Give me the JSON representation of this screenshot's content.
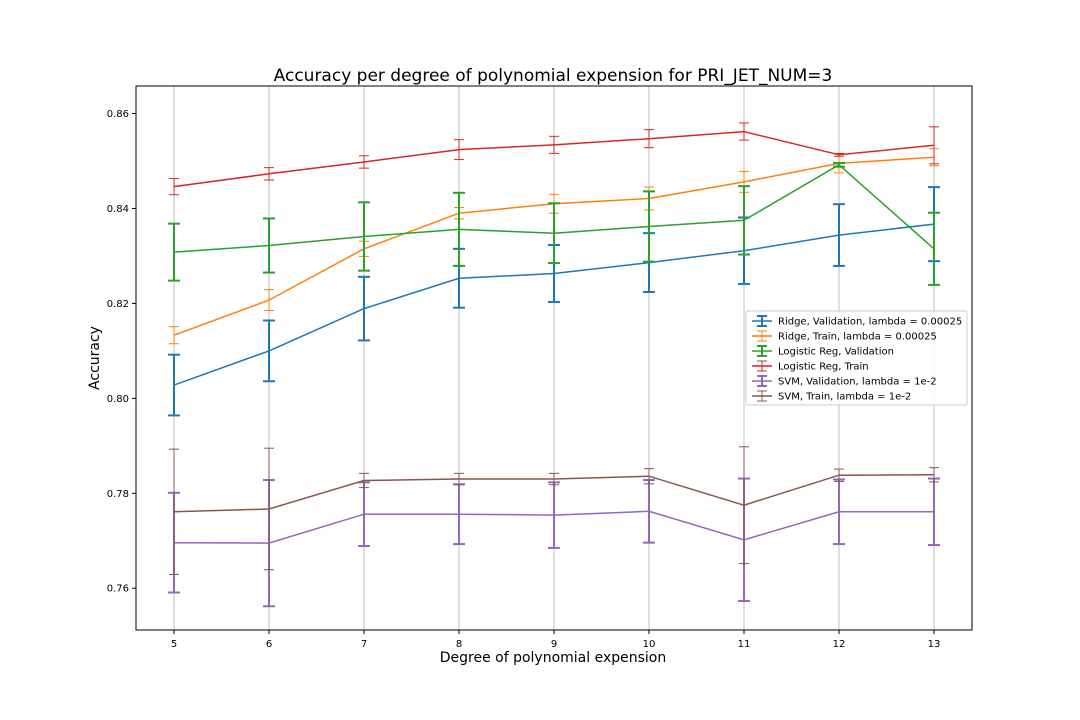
{
  "chart_data": {
    "type": "line",
    "title": "Accuracy per degree of polynomial expension for PRI_JET_NUM=3",
    "xlabel": "Degree of polynomial expension",
    "ylabel": "Accuracy",
    "x": [
      5,
      6,
      7,
      8,
      9,
      10,
      11,
      12,
      13
    ],
    "xlim": [
      4.6,
      13.4
    ],
    "ylim": [
      0.7512,
      0.8658
    ],
    "yticks": [
      0.76,
      0.78,
      0.8,
      0.82,
      0.84,
      0.86
    ],
    "yticks_labels": [
      "0.76",
      "0.78",
      "0.80",
      "0.82",
      "0.84",
      "0.86"
    ],
    "grid": "vertical",
    "legend_position": "center-right",
    "series": [
      {
        "name": "Ridge, Validation, lambda = 0.00025",
        "color": "#1f77b4",
        "errbar": "thick",
        "values": [
          0.8028,
          0.81,
          0.8189,
          0.8253,
          0.8263,
          0.8286,
          0.8311,
          0.8344,
          0.8367
        ],
        "errors": [
          0.0064,
          0.0064,
          0.0067,
          0.0062,
          0.006,
          0.0062,
          0.007,
          0.0065,
          0.0078
        ]
      },
      {
        "name": "Ridge, Train, lambda = 0.00025",
        "color": "#ff7f0e",
        "errbar": "thin",
        "values": [
          0.8133,
          0.8207,
          0.8315,
          0.839,
          0.841,
          0.8421,
          0.8456,
          0.8495,
          0.8508
        ],
        "errors": [
          0.0018,
          0.0022,
          0.0016,
          0.0012,
          0.002,
          0.0024,
          0.0022,
          0.002,
          0.0018
        ]
      },
      {
        "name": "Logistic Reg, Validation",
        "color": "#2ca02c",
        "errbar": "thick",
        "values": [
          0.8308,
          0.8322,
          0.8341,
          0.8356,
          0.8348,
          0.8362,
          0.8375,
          0.8492,
          0.8315
        ],
        "errors": [
          0.006,
          0.0057,
          0.0072,
          0.0077,
          0.0063,
          0.0074,
          0.0072,
          0.0004,
          0.0076
        ]
      },
      {
        "name": "Logistic Reg, Train",
        "color": "#d62728",
        "errbar": "thin",
        "values": [
          0.8446,
          0.8473,
          0.8498,
          0.8524,
          0.8534,
          0.8547,
          0.8562,
          0.8513,
          0.8533
        ],
        "errors": [
          0.0017,
          0.0013,
          0.0013,
          0.0021,
          0.0018,
          0.0019,
          0.0018,
          0.0003,
          0.0039
        ]
      },
      {
        "name": "SVM, Validation, lambda = 1e-2",
        "color": "#9467bd",
        "errbar": "thick",
        "values": [
          0.7696,
          0.7695,
          0.7756,
          0.7756,
          0.7754,
          0.7762,
          0.7702,
          0.7761,
          0.7761
        ],
        "errors": [
          0.0105,
          0.0133,
          0.0067,
          0.0063,
          0.0069,
          0.0066,
          0.0129,
          0.0068,
          0.007
        ]
      },
      {
        "name": "SVM, Train, lambda = 1e-2",
        "color": "#8c564b",
        "errbar": "thin",
        "values": [
          0.7761,
          0.7767,
          0.7827,
          0.783,
          0.783,
          0.7836,
          0.7775,
          0.7838,
          0.7839
        ],
        "errors": [
          0.0132,
          0.0128,
          0.0015,
          0.0012,
          0.0012,
          0.0016,
          0.0123,
          0.0013,
          0.0015
        ]
      }
    ]
  }
}
